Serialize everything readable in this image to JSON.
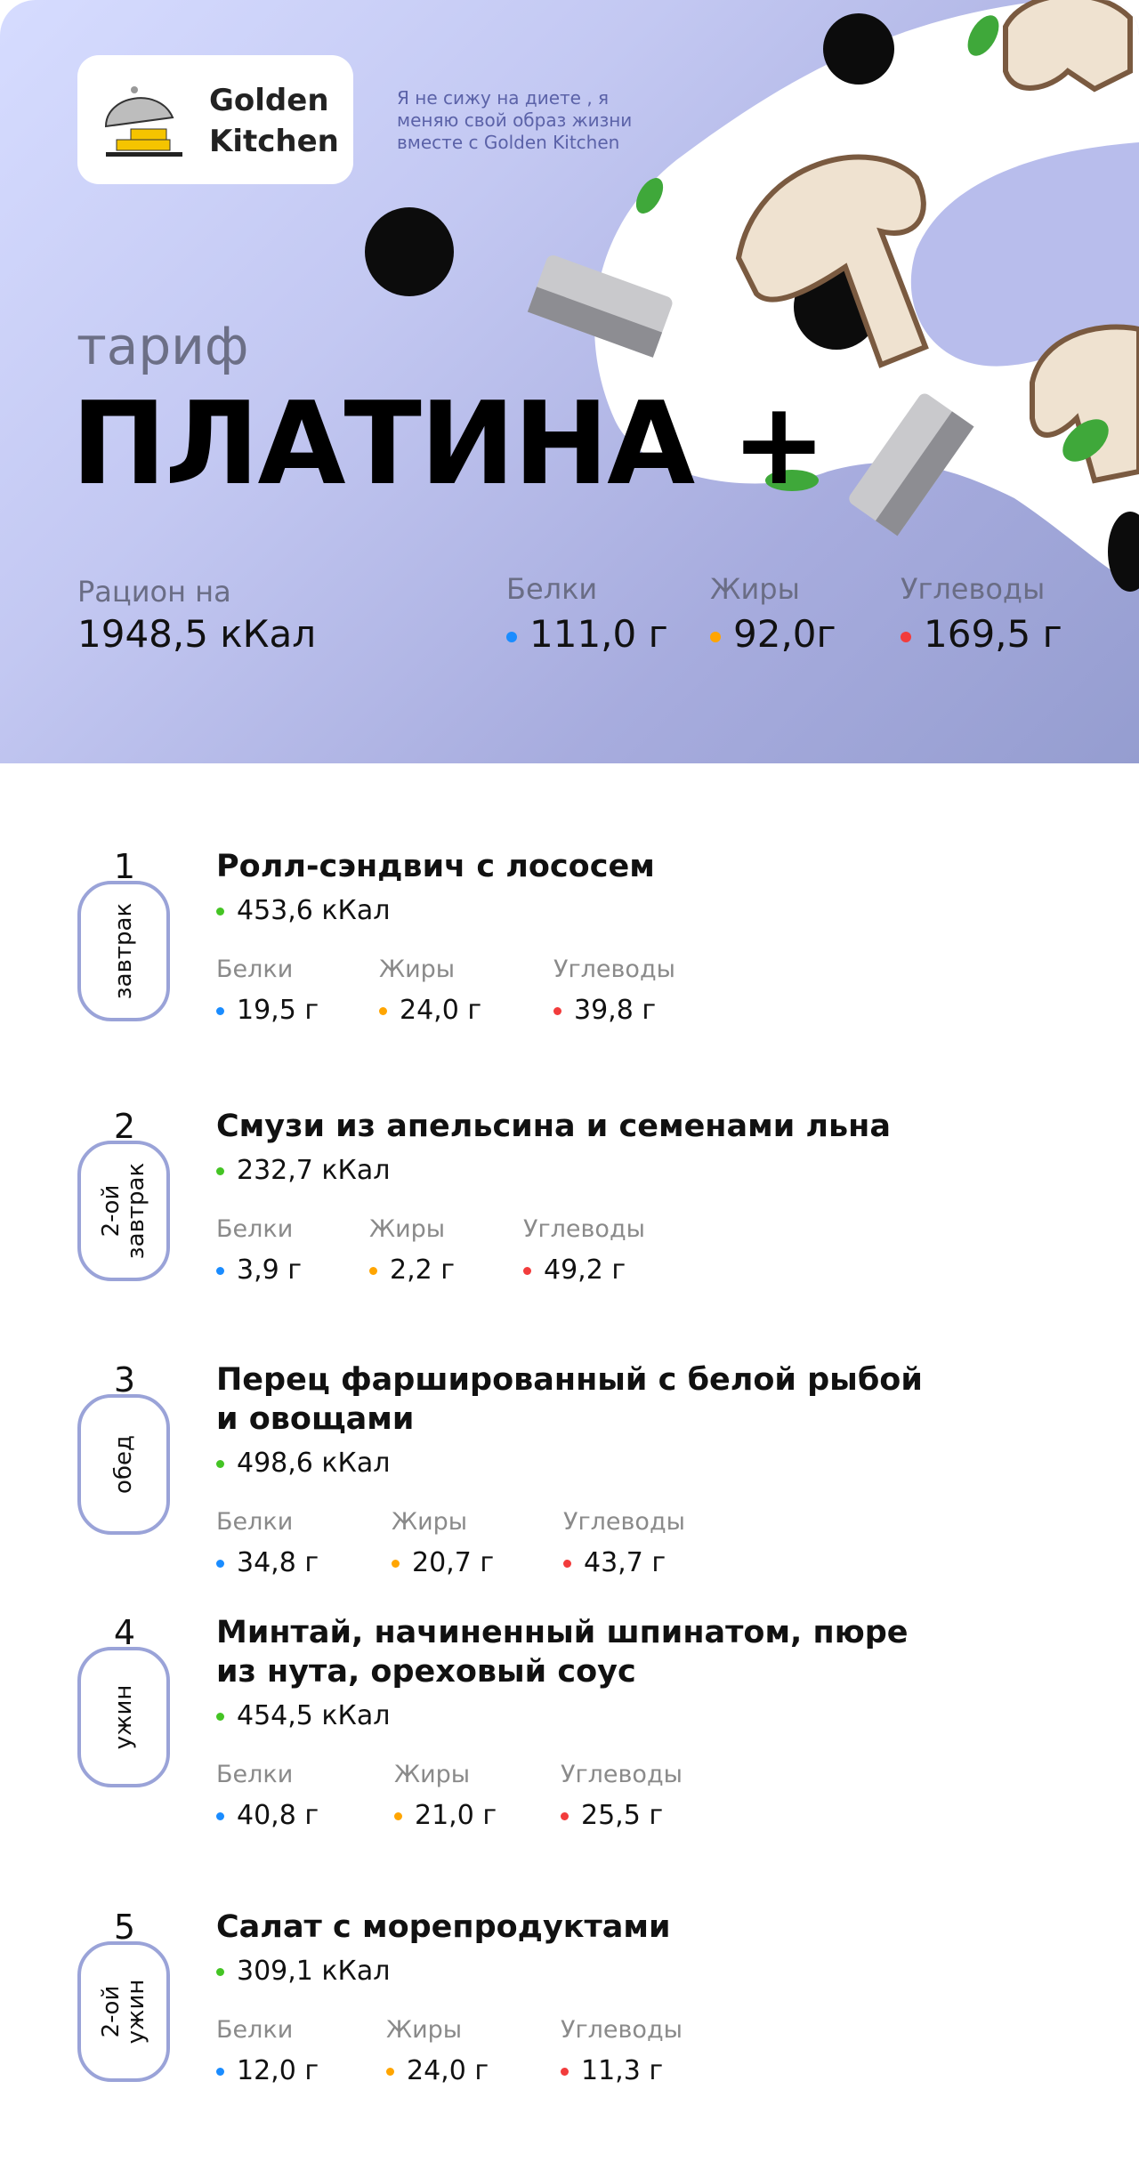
{
  "brand": {
    "name_line1": "Golden",
    "name_line2": "Kitchen",
    "tagline": "Я не сижу на диете , я\nменяю свой образ жизни\nвместе с Golden Kitchen"
  },
  "plan": {
    "prefix": "тариф",
    "name": "ПЛАТИНА +"
  },
  "summary": {
    "ration_label": "Рацион на",
    "ration_value": "1948,5 кКал",
    "protein_label": "Белки",
    "protein_value": "111,0 г",
    "fat_label": "Жиры",
    "fat_value": "92,0г",
    "carbs_label": "Углеводы",
    "carbs_value": "169,5 г"
  },
  "colors": {
    "protein": "#1a8cff",
    "fat": "#ffa500",
    "carbs": "#f23c3c",
    "kcal": "#44c424",
    "pill_border": "#9aa3d8"
  },
  "meals": [
    {
      "number": "1",
      "type": "завтрак",
      "title": "Ролл-сэндвич с лососем",
      "kcal": "453,6 кКал",
      "protein_label": "Белки",
      "protein": "19,5 г",
      "fat_label": "Жиры",
      "fat": "24,0 г",
      "carbs_label": "Углеводы",
      "carbs": "39,8 г"
    },
    {
      "number": "2",
      "type": "2-ой\nзавтрак",
      "title": "Смузи из апельсина и семенами льна",
      "kcal": "232,7 кКал",
      "protein_label": "Белки",
      "protein": "3,9 г",
      "fat_label": "Жиры",
      "fat": "2,2 г",
      "carbs_label": "Углеводы",
      "carbs": "49,2 г"
    },
    {
      "number": "3",
      "type": "обед",
      "title": "Перец фаршированный с белой рыбой\nи овощами",
      "kcal": "498,6 кКал",
      "protein_label": "Белки",
      "protein": "34,8 г",
      "fat_label": "Жиры",
      "fat": "20,7 г",
      "carbs_label": "Углеводы",
      "carbs": "43,7 г"
    },
    {
      "number": "4",
      "type": "ужин",
      "title": "Минтай, начиненный шпинатом, пюре\nиз нута, ореховый соус",
      "kcal": "454,5 кКал",
      "protein_label": "Белки",
      "protein": "40,8 г",
      "fat_label": "Жиры",
      "fat": "21,0 г",
      "carbs_label": "Углеводы",
      "carbs": "25,5 г"
    },
    {
      "number": "5",
      "type": "2-ой\nужин",
      "title": "Салат с морепродуктами",
      "kcal": "309,1 кКал",
      "protein_label": "Белки",
      "protein": "12,0 г",
      "fat_label": "Жиры",
      "fat": "24,0 г",
      "carbs_label": "Углеводы",
      "carbs": "11,3 г"
    }
  ]
}
